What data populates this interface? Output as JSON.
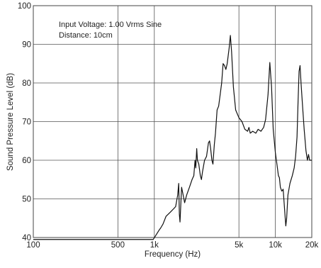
{
  "chart_data": {
    "type": "line",
    "title": "",
    "xlabel": "Frequency (Hz)",
    "ylabel": "Sound Pressure Level (dB)",
    "x_scale": "log",
    "xlim": [
      100,
      20000
    ],
    "ylim": [
      40,
      100
    ],
    "grid": true,
    "annotations": [
      "Input Voltage: 1.00 Vrms Sine",
      "Distance: 10cm"
    ],
    "x_ticks": [
      {
        "value": 100,
        "label": "100"
      },
      {
        "value": 500,
        "label": "500"
      },
      {
        "value": 1000,
        "label": "1k"
      },
      {
        "value": 5000,
        "label": "5k"
      },
      {
        "value": 10000,
        "label": "10k"
      },
      {
        "value": 20000,
        "label": "20k"
      }
    ],
    "y_ticks": [
      {
        "value": 40,
        "label": "40"
      },
      {
        "value": 50,
        "label": "50"
      },
      {
        "value": 60,
        "label": "60"
      },
      {
        "value": 70,
        "label": "70"
      },
      {
        "value": 80,
        "label": "80"
      },
      {
        "value": 90,
        "label": "90"
      },
      {
        "value": 100,
        "label": "100"
      }
    ],
    "series": [
      {
        "name": "",
        "color": "#111111",
        "points": [
          [
            100,
            39.5
          ],
          [
            300,
            39.5
          ],
          [
            700,
            39.5
          ],
          [
            980,
            39.5
          ],
          [
            1050,
            41
          ],
          [
            1100,
            42
          ],
          [
            1130,
            42.5
          ],
          [
            1180,
            43.5
          ],
          [
            1250,
            45.5
          ],
          [
            1350,
            46.5
          ],
          [
            1450,
            47.5
          ],
          [
            1500,
            48
          ],
          [
            1560,
            51
          ],
          [
            1590,
            54
          ],
          [
            1610,
            46
          ],
          [
            1630,
            44
          ],
          [
            1680,
            53
          ],
          [
            1730,
            51
          ],
          [
            1780,
            49
          ],
          [
            1850,
            51
          ],
          [
            1950,
            53
          ],
          [
            2050,
            55
          ],
          [
            2120,
            56
          ],
          [
            2170,
            60
          ],
          [
            2200,
            58
          ],
          [
            2240,
            63
          ],
          [
            2270,
            60
          ],
          [
            2330,
            59
          ],
          [
            2400,
            56
          ],
          [
            2450,
            55
          ],
          [
            2500,
            57
          ],
          [
            2600,
            60
          ],
          [
            2700,
            61
          ],
          [
            2800,
            64.5
          ],
          [
            2860,
            65
          ],
          [
            2920,
            63
          ],
          [
            2990,
            60
          ],
          [
            3050,
            59
          ],
          [
            3130,
            64
          ],
          [
            3200,
            67
          ],
          [
            3300,
            73
          ],
          [
            3400,
            74
          ],
          [
            3500,
            77
          ],
          [
            3600,
            80
          ],
          [
            3700,
            85
          ],
          [
            3800,
            84.5
          ],
          [
            3900,
            83.5
          ],
          [
            4000,
            85
          ],
          [
            4150,
            89
          ],
          [
            4250,
            92.3
          ],
          [
            4350,
            88
          ],
          [
            4500,
            79
          ],
          [
            4700,
            73
          ],
          [
            5000,
            71
          ],
          [
            5300,
            70
          ],
          [
            5600,
            68
          ],
          [
            5900,
            67.5
          ],
          [
            6050,
            68.5
          ],
          [
            6200,
            67
          ],
          [
            6500,
            67.5
          ],
          [
            6900,
            67
          ],
          [
            7200,
            68
          ],
          [
            7600,
            67.5
          ],
          [
            8000,
            68.5
          ],
          [
            8300,
            70.5
          ],
          [
            8700,
            77
          ],
          [
            9000,
            85.3
          ],
          [
            9300,
            79
          ],
          [
            9600,
            68
          ],
          [
            10000,
            62
          ],
          [
            10300,
            59
          ],
          [
            10600,
            56
          ],
          [
            10800,
            55.5
          ],
          [
            11000,
            53
          ],
          [
            11300,
            52
          ],
          [
            11600,
            52.5
          ],
          [
            12000,
            46
          ],
          [
            12200,
            43
          ],
          [
            12400,
            45
          ],
          [
            12700,
            51
          ],
          [
            13200,
            54
          ],
          [
            13800,
            56
          ],
          [
            14300,
            58
          ],
          [
            14700,
            61
          ],
          [
            15100,
            66
          ],
          [
            15400,
            75
          ],
          [
            15700,
            83
          ],
          [
            16000,
            84.5
          ],
          [
            16300,
            80
          ],
          [
            16700,
            75
          ],
          [
            17300,
            68
          ],
          [
            17900,
            62.5
          ],
          [
            18400,
            60
          ],
          [
            18800,
            61.5
          ],
          [
            19200,
            60
          ],
          [
            19600,
            60
          ],
          [
            20000,
            60
          ]
        ]
      }
    ]
  }
}
